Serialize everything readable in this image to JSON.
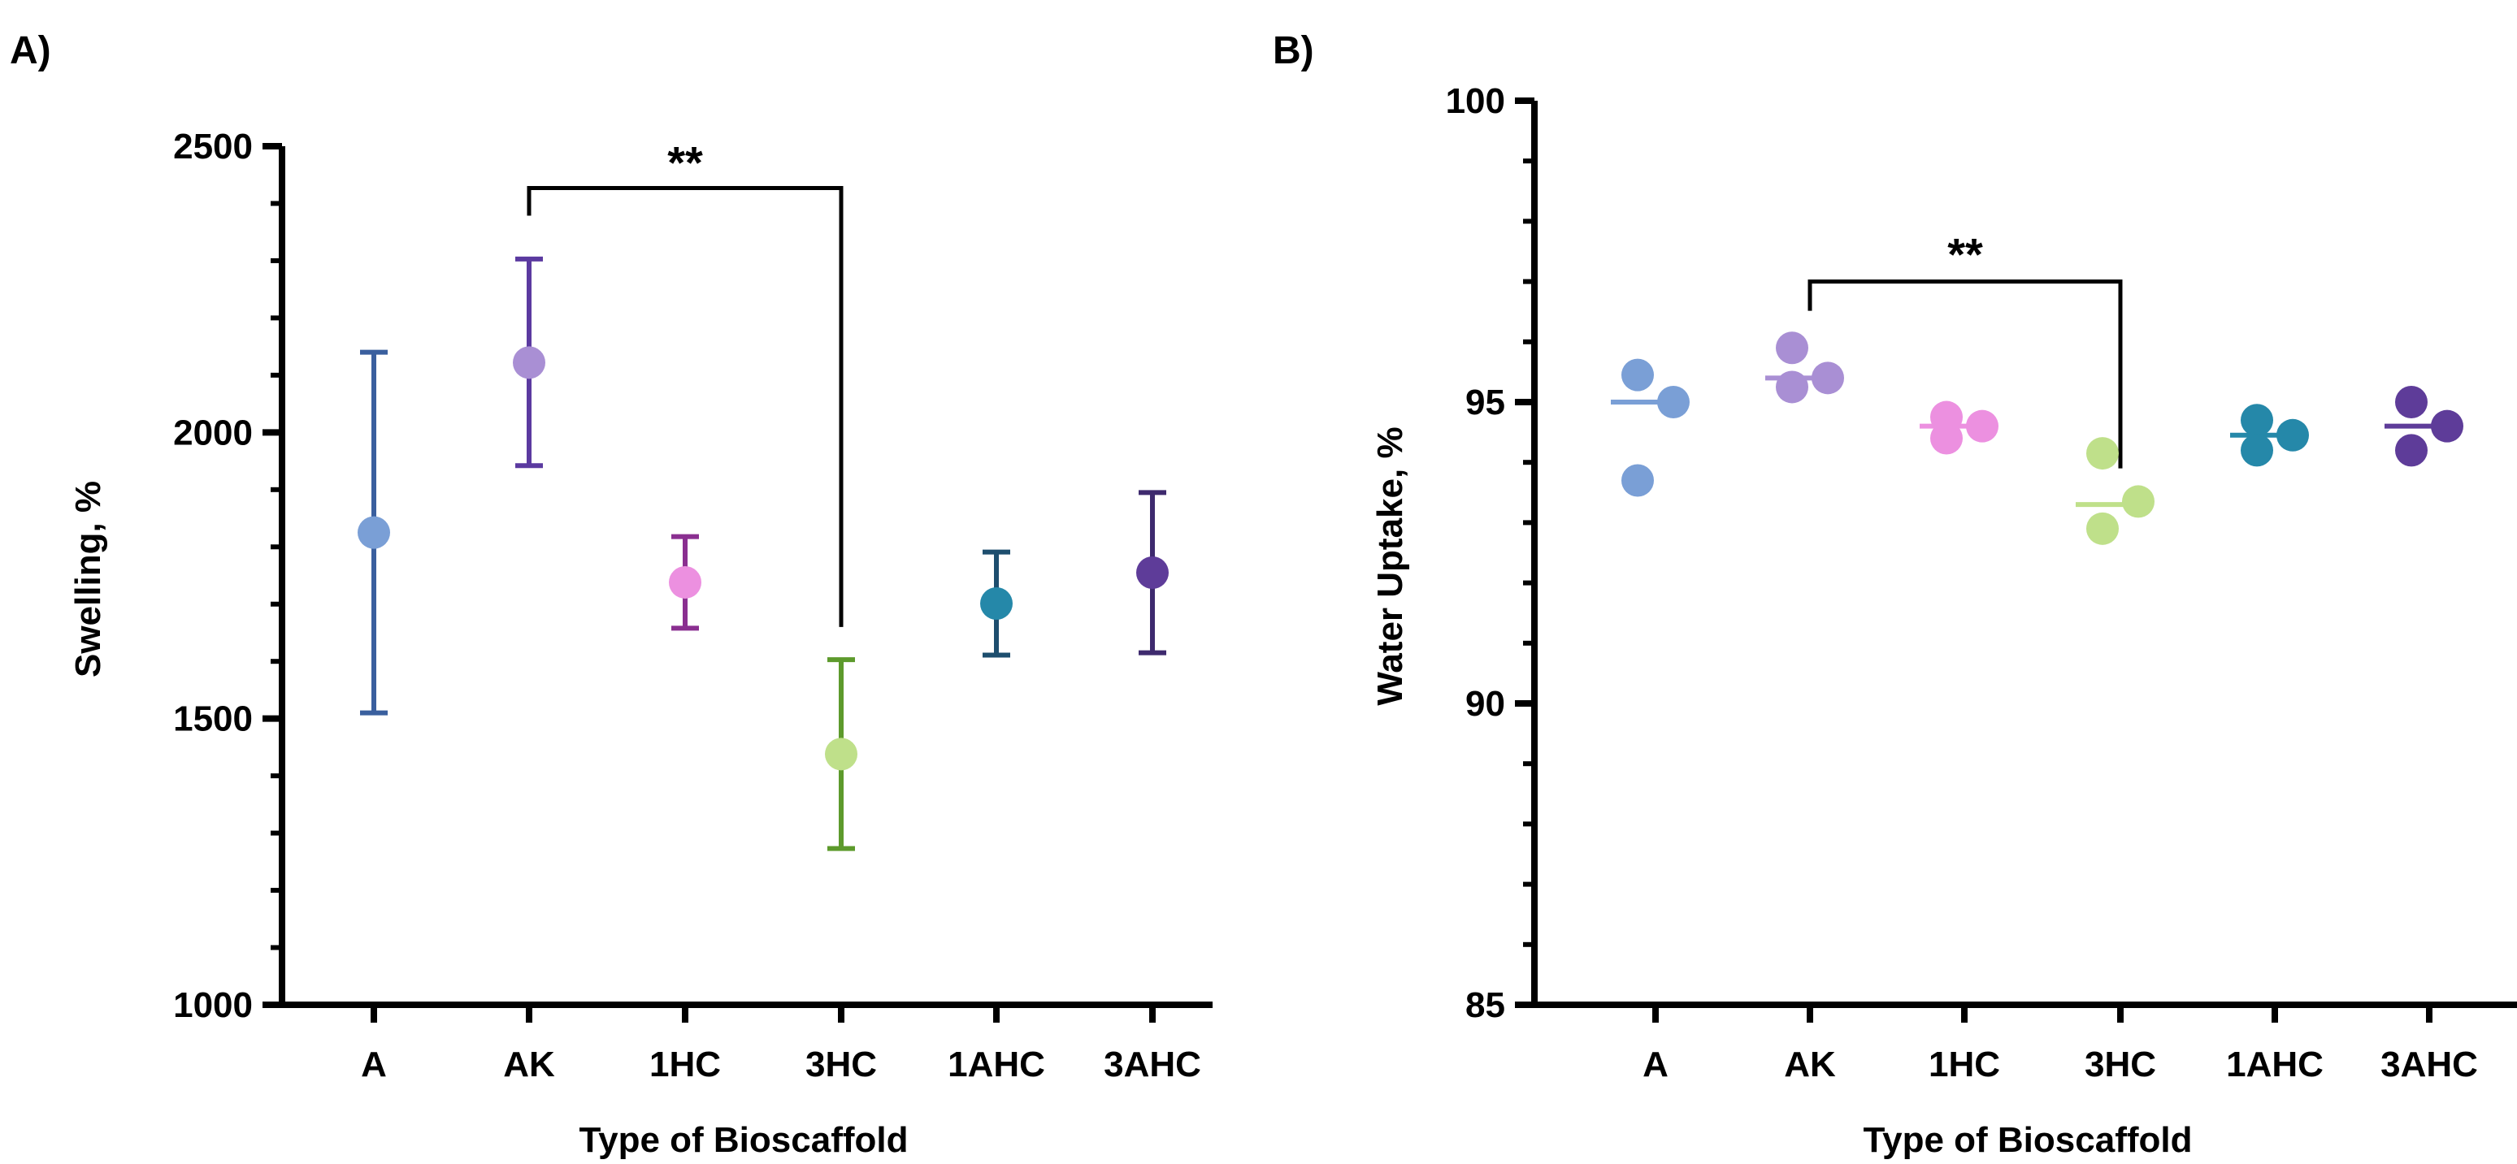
{
  "chart_data": [
    {
      "panel": "A)",
      "type": "scatter",
      "subtype": "mean-with-error-bars",
      "xlabel": "Type of Bioscaffold",
      "ylabel": "Swelling, %",
      "ylim": [
        1000,
        2500
      ],
      "yticks": [
        1000,
        1500,
        2000,
        2500
      ],
      "categories": [
        "A",
        "AK",
        "1HC",
        "3HC",
        "1AHC",
        "3AHC"
      ],
      "points": [
        {
          "category": "A",
          "mean": 1825,
          "lower": 1510,
          "upper": 2140,
          "marker_color": "#7a9fd6",
          "bar_color": "#3a5f9e"
        },
        {
          "category": "AK",
          "mean": 2122,
          "lower": 1942,
          "upper": 2303,
          "marker_color": "#a98fd4",
          "bar_color": "#5b3aa0"
        },
        {
          "category": "1HC",
          "mean": 1738,
          "lower": 1658,
          "upper": 1818,
          "marker_color": "#ec90e0",
          "bar_color": "#8a2f90"
        },
        {
          "category": "3HC",
          "mean": 1438,
          "lower": 1273,
          "upper": 1603,
          "marker_color": "#bfe08a",
          "bar_color": "#5d9a2c"
        },
        {
          "category": "1AHC",
          "mean": 1701,
          "lower": 1611,
          "upper": 1791,
          "marker_color": "#2588a9",
          "bar_color": "#1d4e6e"
        },
        {
          "category": "3AHC",
          "mean": 1755,
          "lower": 1615,
          "upper": 1895,
          "marker_color": "#5e3c99",
          "bar_color": "#3e2a6e"
        }
      ],
      "significance": [
        {
          "from": "AK",
          "to": "3HC",
          "label": "**",
          "bracket_y": 2427,
          "right_drop_to": 1660
        }
      ]
    },
    {
      "panel": "B)",
      "type": "scatter",
      "subtype": "individual-points-with-mean",
      "xlabel": "Type of Bioscaffold",
      "ylabel": "Water Uptake, %",
      "ylim": [
        85,
        100
      ],
      "yticks": [
        85,
        90,
        95,
        100
      ],
      "categories": [
        "A",
        "AK",
        "1HC",
        "3HC",
        "1AHC",
        "3AHC"
      ],
      "series": [
        {
          "category": "A",
          "color": "#7a9fd6",
          "mean": 95.0,
          "values": [
            95.45,
            93.7,
            95.0
          ]
        },
        {
          "category": "AK",
          "color": "#a98fd4",
          "mean": 95.4,
          "values": [
            95.9,
            95.25,
            95.4
          ]
        },
        {
          "category": "1HC",
          "color": "#ec90e0",
          "mean": 94.6,
          "values": [
            94.4,
            94.75,
            94.6
          ]
        },
        {
          "category": "3HC",
          "color": "#bfe08a",
          "mean": 93.3,
          "values": [
            94.15,
            92.9,
            93.35
          ]
        },
        {
          "category": "1AHC",
          "color": "#2588a9",
          "mean": 94.45,
          "values": [
            94.7,
            94.2,
            94.45
          ]
        },
        {
          "category": "3AHC",
          "color": "#5e3c99",
          "mean": 94.6,
          "values": [
            95.0,
            94.2,
            94.6
          ]
        }
      ],
      "significance": [
        {
          "from": "AK",
          "to": "3HC",
          "label": "**",
          "bracket_y": 97.0,
          "right_drop_to": 93.9
        }
      ]
    }
  ]
}
